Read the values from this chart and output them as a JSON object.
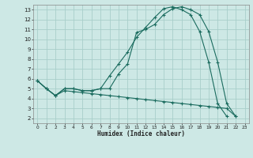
{
  "xlabel": "Humidex (Indice chaleur)",
  "bg_color": "#cde8e5",
  "grid_color": "#a8ceca",
  "line_color": "#1a6b5e",
  "xlim": [
    -0.5,
    23.5
  ],
  "ylim": [
    1.5,
    13.5
  ],
  "xticks": [
    0,
    1,
    2,
    3,
    4,
    5,
    6,
    7,
    8,
    9,
    10,
    11,
    12,
    13,
    14,
    15,
    16,
    17,
    18,
    19,
    20,
    21,
    22,
    23
  ],
  "yticks": [
    2,
    3,
    4,
    5,
    6,
    7,
    8,
    9,
    10,
    11,
    12,
    13
  ],
  "line1_x": [
    0,
    1,
    2,
    3,
    4,
    5,
    6,
    7,
    8,
    9,
    10,
    11,
    12,
    13,
    14,
    15,
    16,
    17,
    18,
    19,
    20,
    21,
    22
  ],
  "line1_y": [
    5.8,
    5.0,
    4.3,
    5.0,
    5.0,
    4.8,
    4.8,
    5.0,
    5.0,
    6.5,
    7.5,
    10.7,
    11.0,
    11.5,
    12.5,
    13.1,
    13.3,
    13.0,
    12.5,
    10.8,
    7.7,
    3.5,
    2.2
  ],
  "line2_x": [
    0,
    1,
    2,
    3,
    4,
    5,
    6,
    7,
    8,
    9,
    10,
    11,
    12,
    13,
    14,
    15,
    16,
    17,
    18,
    19,
    20,
    21
  ],
  "line2_y": [
    5.8,
    5.0,
    4.3,
    5.0,
    5.0,
    4.8,
    4.8,
    5.0,
    6.3,
    7.5,
    8.7,
    10.2,
    11.2,
    12.2,
    13.1,
    13.3,
    13.0,
    12.5,
    10.8,
    7.7,
    3.5,
    2.2
  ],
  "line3_x": [
    0,
    1,
    2,
    3,
    4,
    5,
    6,
    7,
    8,
    9,
    10,
    11,
    12,
    13,
    14,
    15,
    16,
    17,
    18,
    19,
    20,
    21,
    22
  ],
  "line3_y": [
    5.8,
    5.0,
    4.3,
    4.8,
    4.7,
    4.6,
    4.5,
    4.4,
    4.3,
    4.2,
    4.1,
    4.0,
    3.9,
    3.8,
    3.7,
    3.6,
    3.5,
    3.4,
    3.3,
    3.2,
    3.1,
    3.0,
    2.2
  ]
}
